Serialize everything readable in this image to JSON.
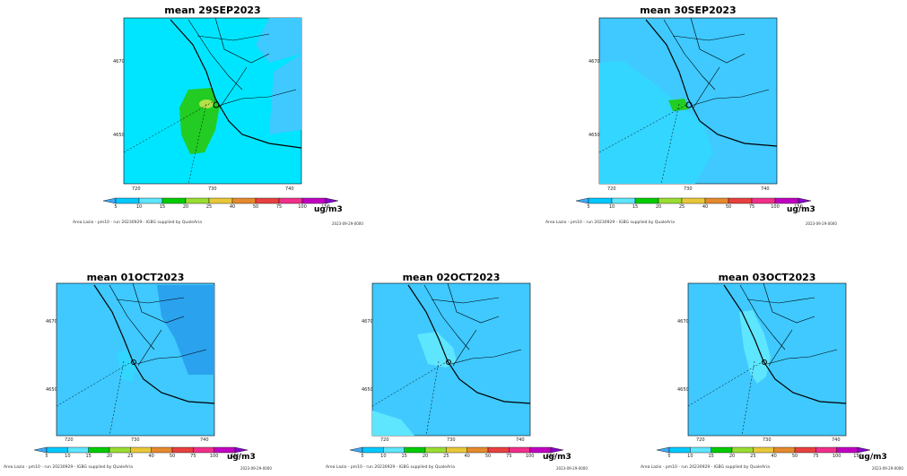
{
  "legend": {
    "unit": "ug/m3",
    "labels": [
      "5",
      "10",
      "15",
      "20",
      "25",
      "40",
      "50",
      "75",
      "100",
      "150"
    ],
    "colors": [
      "#3fa9f5",
      "#00c8ff",
      "#5ee6ff",
      "#00cc00",
      "#99dd33",
      "#e8c83a",
      "#e58a2e",
      "#e84040",
      "#f0308a",
      "#c000c0",
      "#8800cc"
    ]
  },
  "axes": {
    "y_ticks": [
      "4670",
      "4650"
    ],
    "x_ticks": [
      "720",
      "730",
      "740"
    ]
  },
  "panels": [
    {
      "title": "mean  29SEP2023",
      "footer": "Area Lazio - pm10 - run 20230929 - IGBG supplied by QualeAria",
      "stamp": "2023-09-29-0000"
    },
    {
      "title": "mean  30SEP2023",
      "footer": "Area Lazio - pm10 - run 20230929 - IGBG supplied by QualeAria",
      "stamp": "2023-09-29-0000"
    },
    {
      "title": "mean  01OCT2023",
      "footer": "Area Lazio - pm10 - run 20230929 - IGBG supplied by QualeAria",
      "stamp": "2023-09-29-0000"
    },
    {
      "title": "mean  02OCT2023",
      "footer": "Area Lazio - pm10 - run 20230929 - IGBG supplied by QualeAria",
      "stamp": "2023-09-29-0000"
    },
    {
      "title": "mean  03OCT2023",
      "footer": "Area Lazio - pm10 - run 20230929 - IGBG supplied by QualeAria",
      "stamp": "2023-09-29-0000"
    }
  ]
}
